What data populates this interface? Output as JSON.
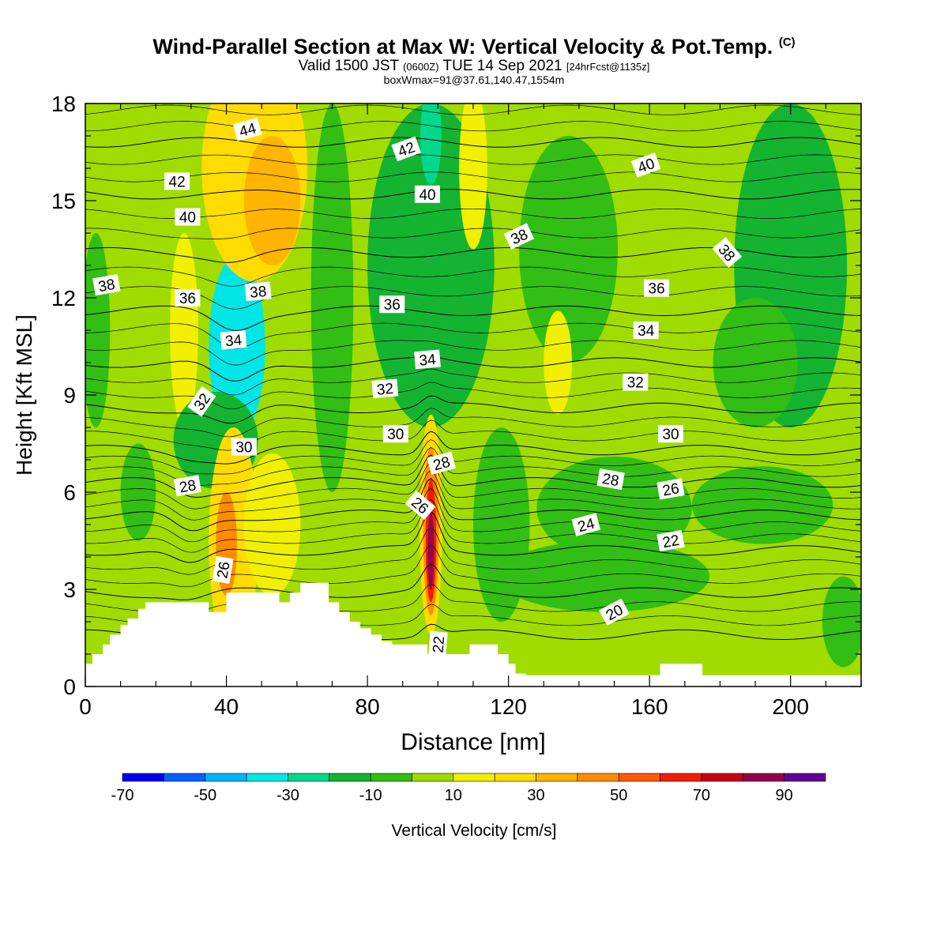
{
  "title": {
    "main": "Wind-Parallel Section at Max W: Vertical Velocity & Pot.Temp.",
    "copyright": "(C)",
    "valid_prefix": "Valid 1500 JST",
    "valid_utc": "(0600Z)",
    "valid_date": "TUE 14 Sep 2021",
    "forecast": "[24hrFcst@1135z]",
    "boxwmax": "boxWmax=91@37.61,140.47,1554m"
  },
  "chart_data": {
    "type": "heatmap",
    "xlabel": "Distance [nm]",
    "ylabel": "Height [Kft MSL]",
    "xlim": [
      0,
      220
    ],
    "ylim": [
      0,
      18
    ],
    "x_ticks": [
      0,
      40,
      80,
      120,
      160,
      200
    ],
    "y_ticks": [
      0,
      3,
      6,
      9,
      12,
      15,
      18
    ],
    "colorbar": {
      "label": "Vertical Velocity [cm/s]",
      "tick_labels": [
        -70,
        -50,
        -30,
        -10,
        10,
        30,
        50,
        70,
        90
      ],
      "range": [
        -70,
        100
      ],
      "bin_edges": [
        -70,
        -60,
        -50,
        -40,
        -30,
        -20,
        -10,
        0,
        10,
        20,
        30,
        40,
        50,
        60,
        70,
        80,
        90,
        100
      ],
      "colors": [
        "#0000f0",
        "#0062ff",
        "#00b4ff",
        "#00e6e6",
        "#00d88c",
        "#14b432",
        "#32be14",
        "#a0dc00",
        "#f0f000",
        "#ffdc00",
        "#ffb400",
        "#ff8c00",
        "#ff5a00",
        "#f01e00",
        "#c80014",
        "#96004b",
        "#640096"
      ]
    },
    "terrain_profile": {
      "x": [
        0,
        2,
        5,
        7,
        10,
        12,
        15,
        17,
        20,
        33,
        35,
        39,
        40,
        52,
        55,
        58,
        61,
        66,
        69,
        72,
        75,
        78,
        81,
        84,
        87,
        95,
        97,
        101,
        103,
        109,
        115,
        117,
        120,
        122,
        125,
        163,
        175,
        220
      ],
      "height": [
        0.7,
        1.0,
        1.3,
        1.6,
        1.9,
        2.1,
        2.4,
        2.6,
        2.6,
        2.6,
        2.3,
        2.3,
        2.9,
        2.9,
        2.6,
        2.9,
        3.2,
        3.2,
        2.6,
        2.3,
        2.0,
        1.8,
        1.6,
        1.4,
        1.3,
        1.3,
        1.0,
        1.0,
        1.0,
        1.3,
        1.3,
        1.0,
        0.7,
        0.4,
        0.35,
        0.7,
        0.35,
        0.35
      ]
    },
    "wind_cells": [
      {
        "x": 3,
        "y": 11,
        "value": -10,
        "rx": 4,
        "ry": 3
      },
      {
        "x": 28,
        "y": 11,
        "value": 10,
        "rx": 4,
        "ry": 3
      },
      {
        "x": 43,
        "y": 10.5,
        "value": -35,
        "rx": 8,
        "ry": 2.8
      },
      {
        "x": 48,
        "y": 16,
        "value": 20,
        "rx": 15,
        "ry": 3.5
      },
      {
        "x": 53,
        "y": 15,
        "value": 30,
        "rx": 8,
        "ry": 2
      },
      {
        "x": 70,
        "y": 12,
        "value": -10,
        "rx": 6,
        "ry": 6
      },
      {
        "x": 98,
        "y": 13,
        "value": -15,
        "rx": 18,
        "ry": 5
      },
      {
        "x": 98,
        "y": 17,
        "value": -30,
        "rx": 3,
        "ry": 1.5
      },
      {
        "x": 110,
        "y": 16,
        "value": 10,
        "rx": 4,
        "ry": 2.5
      },
      {
        "x": 137,
        "y": 13.5,
        "value": -10,
        "rx": 14,
        "ry": 3.5
      },
      {
        "x": 134,
        "y": 10,
        "value": 10,
        "rx": 4,
        "ry": 1.6
      },
      {
        "x": 200,
        "y": 13,
        "value": -15,
        "rx": 16,
        "ry": 5
      },
      {
        "x": 190,
        "y": 10,
        "value": -10,
        "rx": 12,
        "ry": 2
      },
      {
        "x": 37,
        "y": 7.6,
        "value": -15,
        "rx": 12,
        "ry": 1.5
      },
      {
        "x": 42,
        "y": 4.5,
        "value": 20,
        "rx": 7,
        "ry": 3.5
      },
      {
        "x": 40,
        "y": 4.4,
        "value": 40,
        "rx": 3,
        "ry": 1.6
      },
      {
        "x": 53,
        "y": 5,
        "value": 10,
        "rx": 8,
        "ry": 2.2
      },
      {
        "x": 15,
        "y": 6,
        "value": -10,
        "rx": 5,
        "ry": 1.5
      },
      {
        "x": 118,
        "y": 5,
        "value": -10,
        "rx": 8,
        "ry": 3
      },
      {
        "x": 150,
        "y": 5.5,
        "value": -10,
        "rx": 22,
        "ry": 1.6
      },
      {
        "x": 147,
        "y": 3.4,
        "value": -10,
        "rx": 30,
        "ry": 1.1
      },
      {
        "x": 192,
        "y": 5.6,
        "value": -10,
        "rx": 20,
        "ry": 1.2
      },
      {
        "x": 215,
        "y": 2,
        "value": -10,
        "rx": 6,
        "ry": 1.4
      },
      {
        "x": 98,
        "y": 5,
        "value": 20,
        "rx": 3.2,
        "ry": 3.4
      },
      {
        "x": 98,
        "y": 4.8,
        "value": 40,
        "rx": 2.2,
        "ry": 2.6
      },
      {
        "x": 98,
        "y": 4.5,
        "value": 60,
        "rx": 1.5,
        "ry": 1.9
      },
      {
        "x": 98,
        "y": 4.2,
        "value": 80,
        "rx": 0.9,
        "ry": 1.2
      }
    ],
    "theta_contours": {
      "levels": [
        20,
        22,
        24,
        26,
        28,
        30,
        32,
        34,
        36,
        38,
        40,
        42,
        44
      ],
      "base_heights": [
        1.6,
        2.9,
        4.2,
        5.3,
        6.3,
        7.3,
        8.6,
        10.0,
        11.6,
        13.4,
        15.2,
        16.8,
        18.3
      ],
      "perturbations": [
        {
          "x": 98,
          "amplitude": 1.2,
          "width": 3.5,
          "y_center": 5,
          "y_spread": 3
        },
        {
          "x": 42,
          "amplitude": -0.7,
          "width": 8,
          "y_center": 10,
          "y_spread": 3
        },
        {
          "x": 30,
          "amplitude": -0.6,
          "width": 7,
          "y_center": 5,
          "y_spread": 2
        }
      ],
      "labels": [
        {
          "value": "20",
          "x": 150,
          "y": 2.3,
          "angle": -28
        },
        {
          "value": "22",
          "x": 100,
          "y": 1.3,
          "angle": -85
        },
        {
          "value": "22",
          "x": 166,
          "y": 4.5,
          "angle": -10
        },
        {
          "value": "24",
          "x": 142,
          "y": 5.0,
          "angle": -15
        },
        {
          "value": "26",
          "x": 39,
          "y": 3.6,
          "angle": -80
        },
        {
          "value": "26",
          "x": 95,
          "y": 5.6,
          "angle": 40
        },
        {
          "value": "26",
          "x": 166,
          "y": 6.1,
          "angle": -10
        },
        {
          "value": "28",
          "x": 29,
          "y": 6.2,
          "angle": -10
        },
        {
          "value": "28",
          "x": 101,
          "y": 6.9,
          "angle": -15
        },
        {
          "value": "28",
          "x": 149,
          "y": 6.4,
          "angle": 10
        },
        {
          "value": "30",
          "x": 45,
          "y": 7.4,
          "angle": 0
        },
        {
          "value": "30",
          "x": 88,
          "y": 7.8,
          "angle": 0
        },
        {
          "value": "30",
          "x": 166,
          "y": 7.8,
          "angle": 0
        },
        {
          "value": "32",
          "x": 33,
          "y": 8.8,
          "angle": -55
        },
        {
          "value": "32",
          "x": 85,
          "y": 9.2,
          "angle": -5
        },
        {
          "value": "32",
          "x": 156,
          "y": 9.4,
          "angle": 0
        },
        {
          "value": "34",
          "x": 42,
          "y": 10.7,
          "angle": -5
        },
        {
          "value": "34",
          "x": 97,
          "y": 10.1,
          "angle": -5
        },
        {
          "value": "34",
          "x": 159,
          "y": 11.0,
          "angle": 0
        },
        {
          "value": "36",
          "x": 29,
          "y": 12.0,
          "angle": 0
        },
        {
          "value": "36",
          "x": 87,
          "y": 11.8,
          "angle": 0
        },
        {
          "value": "36",
          "x": 162,
          "y": 12.3,
          "angle": 0
        },
        {
          "value": "38",
          "x": 6,
          "y": 12.4,
          "angle": -10
        },
        {
          "value": "38",
          "x": 49,
          "y": 12.2,
          "angle": -5
        },
        {
          "value": "38",
          "x": 123,
          "y": 13.9,
          "angle": -25
        },
        {
          "value": "38",
          "x": 182,
          "y": 13.4,
          "angle": 50
        },
        {
          "value": "40",
          "x": 29,
          "y": 14.5,
          "angle": 0
        },
        {
          "value": "40",
          "x": 97,
          "y": 15.2,
          "angle": 0
        },
        {
          "value": "40",
          "x": 159,
          "y": 16.1,
          "angle": -20
        },
        {
          "value": "42",
          "x": 26,
          "y": 15.6,
          "angle": 0
        },
        {
          "value": "42",
          "x": 91,
          "y": 16.6,
          "angle": -20
        },
        {
          "value": "44",
          "x": 46,
          "y": 17.2,
          "angle": -15
        }
      ]
    }
  }
}
